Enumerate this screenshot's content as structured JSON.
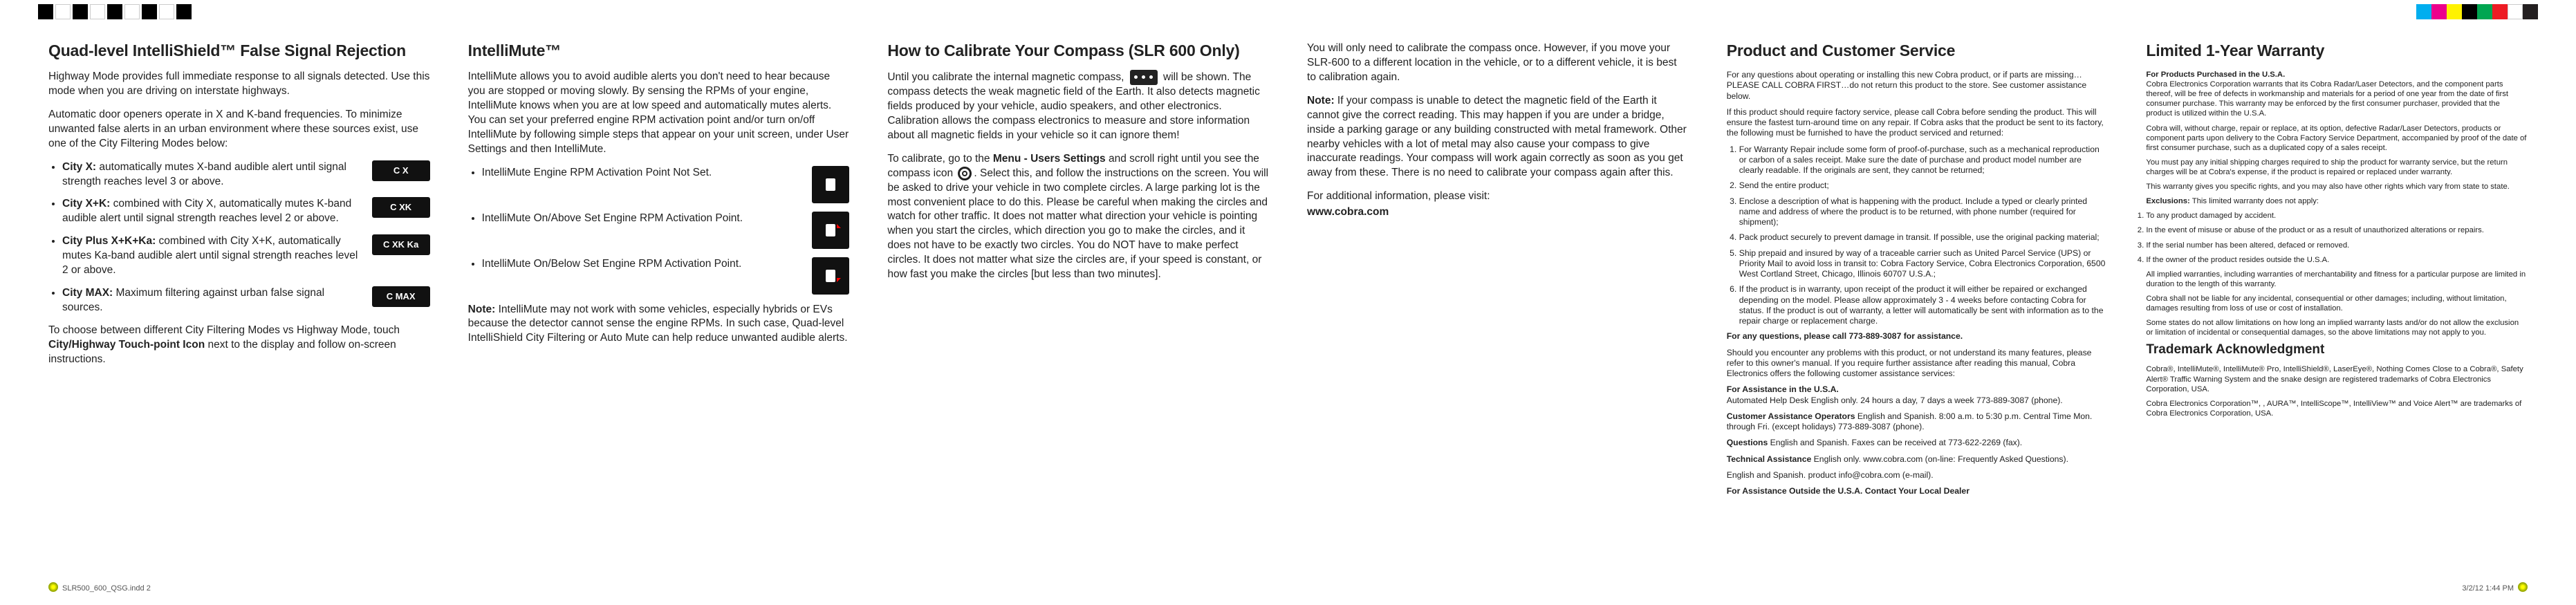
{
  "reg_colors_left": [
    "#000000",
    "#ffffff",
    "#000000",
    "#ffffff",
    "#000000",
    "#ffffff",
    "#000000",
    "#ffffff",
    "#000000"
  ],
  "reg_colors_right": [
    "#00aeef",
    "#ec008c",
    "#fff200",
    "#000000",
    "#00a651",
    "#ed1c24",
    "#ffffff",
    "#231f20"
  ],
  "footer_left": "SLR500_600_QSG.indd   2",
  "footer_right": "3/2/12   1:44 PM",
  "col1": {
    "h2": "Quad-level IntelliShield™ False Signal Rejection",
    "p1": "Highway Mode provides full immediate response to all signals detected.  Use this mode when you are driving on interstate highways.",
    "p2": "Automatic door openers operate in X and K-band frequencies.  To minimize unwanted false alerts in an urban environment where these sources exist, use one of the City Filtering Modes below:",
    "items": [
      {
        "b": "City X:",
        "t": " automatically mutes X-band audible alert until signal strength reaches level 3 or above.",
        "icon": "C  X"
      },
      {
        "b": "City X+K:",
        "t": " combined with City X, automatically mutes K-band audible alert until signal strength reaches level 2 or above.",
        "icon": "C XK"
      },
      {
        "b": "City Plus X+K+Ka:",
        "t": " combined with City X+K, automatically mutes Ka-band audible alert until signal strength reaches level 2 or above.",
        "icon": "C XK Ka"
      },
      {
        "b": "City MAX:",
        "t": " Maximum filtering against urban false signal sources.",
        "icon": "C MAX"
      }
    ],
    "p3a": "To choose between different City Filtering Modes vs Highway Mode, touch ",
    "p3b": "City/Highway Touch-point Icon",
    "p3c": " next to the display and follow on-screen instructions."
  },
  "col2": {
    "h2": "IntelliMute™",
    "p1": "IntelliMute allows you to avoid audible alerts you don't need to hear because you are stopped or moving slowly.  By sensing the RPMs of your engine, IntelliMute knows when you are at low speed and automatically mutes alerts.  You can set your preferred engine RPM activation point and/or turn on/off IntelliMute by following simple steps that appear on your unit screen, under User Settings and then IntelliMute.",
    "items": [
      "IntelliMute Engine RPM Activation Point Not Set.",
      "IntelliMute On/Above Set Engine RPM Activation Point.",
      "IntelliMute On/Below Set Engine RPM Activation Point."
    ],
    "note_b": "Note:",
    "note": " IntelliMute may not work with some vehicles, especially hybrids or EVs because the detector cannot sense the engine RPMs.  In such case, Quad-level IntelliShield City Filtering or Auto Mute can help reduce unwanted audible alerts."
  },
  "col3": {
    "h2": "How to Calibrate Your Compass (SLR 600 Only)",
    "p1a": "Until you calibrate the internal magnetic compass, ",
    "p1b": " will be shown.   The compass detects the weak magnetic field of the Earth. It also detects magnetic fields produced by your vehicle, audio speakers, and other electronics. Calibration allows the compass electronics to measure and store information about all magnetic fields in your vehicle so it can ignore them!",
    "p2a": "To calibrate, go to the ",
    "p2b": "Menu - Users Settings",
    "p2c": " and scroll right until you see the compass icon ",
    "p2d": ".  Select this, and follow the instructions on the screen.   You will be asked to drive your vehicle in two complete circles. A large parking lot is the most convenient place to do this. Please be careful when making the circles and watch for other traffic. It does not matter what direction your vehicle is pointing when you start the circles, which direction you go to make the circles, and it does not have to be exactly two circles. You do NOT have to make perfect circles. It does not matter what size the circles are, if your speed is constant, or how fast you make the circles [but less than two minutes]."
  },
  "col4": {
    "p1": "You will only need to calibrate the compass once.  However, if you move your SLR-600 to a different location in the vehicle, or to a different vehicle, it is best to calibration again.",
    "p2_b": "Note:",
    "p2": "  If your compass is unable to detect the magnetic field of the Earth it cannot give the correct reading. This may happen if you are under a bridge, inside a parking garage or any building constructed with metal framework.  Other nearby vehicles with a lot of metal may also cause your compass to give inaccurate readings.  Your compass will work again correctly as soon as you get away from these. There is no need to calibrate your compass again after this.",
    "p3": "For additional information, please visit:",
    "p4": "www.cobra.com"
  },
  "col5": {
    "h2": "Product and Customer Service",
    "p1": "For any questions about operating or installing this new Cobra product, or if parts are missing…PLEASE CALL COBRA FIRST…do not return this product to the store. See customer assistance below.",
    "p2": "If this product should require factory service, please call Cobra before sending the product. This will ensure the fastest turn-around time on any repair. If Cobra asks that the product be sent to its factory, the following must be furnished to have the product serviced and returned:",
    "ol": [
      "For Warranty Repair include some form of proof-of-purchase, such as a mechanical reproduction or carbon of a sales receipt. Make sure the date of purchase and product model number are clearly readable. If the originals are sent, they cannot be returned;",
      "Send the entire product;",
      "Enclose a description of what is happening with the product. Include a typed or clearly printed name and address of where the product is to be returned, with phone number (required for shipment);",
      "Pack product securely to prevent damage in transit. If possible, use the original packing material;",
      "Ship prepaid and insured by way of a traceable carrier such as United Parcel Service (UPS) or Priority Mail to avoid loss in transit to: Cobra Factory Service, Cobra Electronics Corporation, 6500 West Cortland Street, Chicago, Illinois 60707 U.S.A.;",
      "If the product is in warranty, upon receipt of the product it will either be repaired or exchanged depending on the model. Please allow approximately 3 - 4 weeks before contacting Cobra for status. If the product is out of warranty, a letter will automatically be sent with information as to the repair charge or replacement charge."
    ],
    "p3": "For any questions, please call 773-889-3087 for assistance.",
    "p4": "Should you encounter any problems with this product, or not understand its many features, please refer to this owner's manual. If you require further assistance after reading this manual, Cobra Electronics offers the following customer assistance services:",
    "p5_b": "For Assistance in the U.S.A.",
    "p5": "Automated Help Desk English only. 24 hours a day, 7 days a week 773-889-3087 (phone).",
    "p6_b": "Customer Assistance Operators",
    "p6": " English and Spanish. 8:00 a.m. to 5:30 p.m. Central Time Mon. through Fri. (except holidays) 773-889-3087 (phone).",
    "p7_b": "Questions",
    "p7": " English and Spanish. Faxes can be received at 773-622-2269 (fax).",
    "p8_b": "Technical Assistance",
    "p8": " English only. www.cobra.com (on-line: Frequently Asked Questions).",
    "p9": "English and Spanish. product info@cobra.com (e-mail).",
    "p10": "For Assistance Outside the U.S.A. Contact Your Local Dealer"
  },
  "col6": {
    "h2": "Limited 1-Year Warranty",
    "p1_b": "For Products Purchased in the U.S.A.",
    "p1": "Cobra Electronics Corporation warrants that its Cobra Radar/Laser Detectors, and the component parts thereof, will be free of defects in workmanship and materials for a period of one year from the date of first consumer purchase. This warranty may be enforced by the first consumer purchaser, provided that the product is utilized within the U.S.A.",
    "p2": "Cobra will, without charge, repair or replace, at its option, defective Radar/Laser Detectors, products or component parts upon delivery to the Cobra Factory Service Department, accompanied by proof of the date of first consumer purchase, such as a duplicated copy of a sales receipt.",
    "p3": "You must pay any initial shipping charges required to ship the product for warranty service, but the return charges will be at Cobra's expense, if the product is repaired or replaced under warranty.",
    "p4": "This warranty gives you specific rights, and you may also have other rights which vary from state to state.",
    "p5_b": "Exclusions:",
    "p5": " This limited warranty does not apply:",
    "ol": [
      "To any product damaged by accident.",
      "In the event of misuse or abuse of the product or as a result of unauthorized alterations or repairs.",
      "If the serial number has been altered, defaced or removed.",
      "If the owner of the product resides outside the U.S.A."
    ],
    "p6": "All implied warranties, including warranties of merchantability and fitness for a particular purpose are limited in duration to the length of this warranty.",
    "p7": "Cobra shall not be liable for any incidental, consequential or other damages; including, without limitation, damages resulting from loss of use or cost of installation.",
    "p8": "Some states do not allow limitations on how long an implied warranty lasts and/or do not allow the exclusion or limitation of incidental or consequential damages, so the above limitations may not apply to you.",
    "h3": "Trademark Acknowledgment",
    "p9": "Cobra®, IntelliMute®, IntelliMute® Pro, IntelliShield®, LaserEye®, Nothing Comes Close to a Cobra®, Safety Alert® Traffic Warning System and the snake design are registered trademarks of Cobra Electronics Corporation, USA.",
    "p10": "Cobra Electronics Corporation™, , AURA™, IntelliScope™, IntelliView™ and Voice Alert™ are trademarks of Cobra Electronics Corporation, USA."
  }
}
